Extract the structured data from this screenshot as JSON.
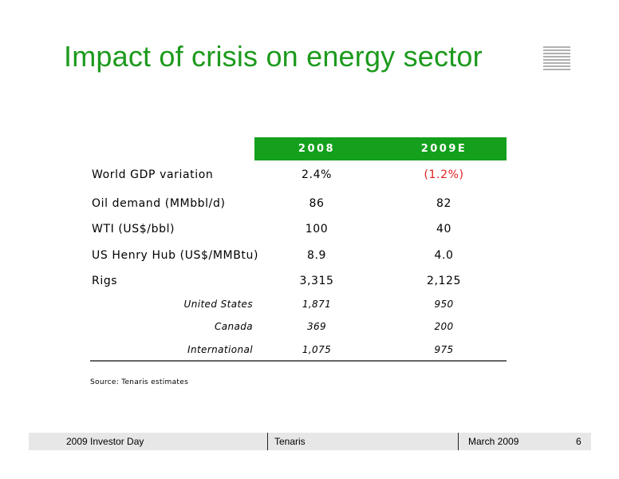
{
  "title": "Impact of crisis on energy sector",
  "table": {
    "headers": [
      "2008",
      "2009E"
    ],
    "rows": [
      {
        "label": "World GDP variation",
        "v2008": "2.4%",
        "v2009": "(1.2%)"
      },
      {
        "label": "Oil demand (MMbbl/d)",
        "v2008": "86",
        "v2009": "82"
      },
      {
        "label": "WTI (US$/bbl)",
        "v2008": "100",
        "v2009": "40"
      },
      {
        "label": "US Henry Hub (US$/MMBtu)",
        "v2008": "8.9",
        "v2009": "4.0"
      },
      {
        "label": "Rigs",
        "v2008": "3,315",
        "v2009": "2,125"
      }
    ],
    "subrows": [
      {
        "label": "United States",
        "v2008": "1,871",
        "v2009": "950"
      },
      {
        "label": "Canada",
        "v2008": "369",
        "v2009": "200"
      },
      {
        "label": "International",
        "v2008": "1,075",
        "v2009": "975"
      }
    ]
  },
  "source": "Source: Tenaris estimates",
  "footer": {
    "event": "2009 Investor Day",
    "company": "Tenaris",
    "date": "March 2009",
    "page": "6"
  },
  "colors": {
    "accent": "#14a01c",
    "negative": "#e01f1f"
  },
  "icons": {
    "logo": "tenaris-lines-logo"
  }
}
